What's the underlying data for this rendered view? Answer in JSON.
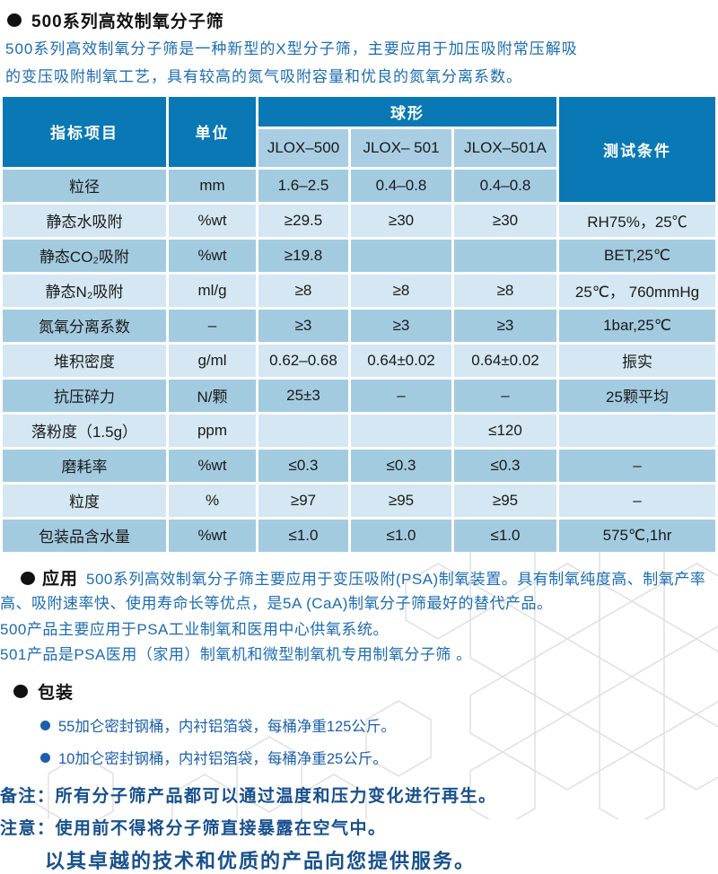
{
  "page": {
    "title": "500系列高效制氧分子筛",
    "intro_line1": "500系列高效制氧分子筛是一种新型的X型分子筛，主要应用于加压吸附常压解吸",
    "intro_line2": "的变压吸附制氧工艺，具有较高的氮气吸附容量和优良的氮氧分离系数。"
  },
  "colors": {
    "header_blue": "#0978B5",
    "row_medium": "#A3CBE0",
    "row_light": "#D4E7F2",
    "text_blue": "#1B6CB3",
    "navy": "#17508E"
  },
  "table": {
    "headers": {
      "indicator": "指标项目",
      "unit": "单位",
      "shape_group": "球形",
      "models": [
        "JLOX–500",
        "JLOX– 501",
        "JLOX–501A"
      ],
      "condition": "测试条件"
    },
    "rows": [
      {
        "label": "粒径",
        "unit": "mm",
        "values": [
          "1.6–2.5",
          "0.4–0.8",
          "0.4–0.8"
        ],
        "condition": null,
        "shade": "medium"
      },
      {
        "label": "静态水吸附",
        "unit": "%wt",
        "values": [
          "≥29.5",
          "≥30",
          "≥30"
        ],
        "condition": "RH75%，25℃",
        "shade": "light"
      },
      {
        "label": "静态CO₂吸附",
        "unit": "%wt",
        "values": [
          "≥19.8",
          "",
          ""
        ],
        "condition": "BET,25℃",
        "shade": "medium"
      },
      {
        "label": "静态N₂吸附",
        "unit": "ml/g",
        "values": [
          "≥8",
          "≥8",
          "≥8"
        ],
        "condition": "25℃， 760mmHg",
        "shade": "light"
      },
      {
        "label": "氮氧分离系数",
        "unit": "–",
        "values": [
          "≥3",
          "≥3",
          "≥3"
        ],
        "condition": "1bar,25℃",
        "shade": "medium"
      },
      {
        "label": "堆积密度",
        "unit": "g/ml",
        "values": [
          "0.62–0.68",
          "0.64±0.02",
          "0.64±0.02"
        ],
        "condition": "振实",
        "shade": "light"
      },
      {
        "label": "抗压碎力",
        "unit": "N/颗",
        "values": [
          "25±3",
          "–",
          "–"
        ],
        "condition": "25颗平均",
        "shade": "medium"
      },
      {
        "label": "落粉度（1.5g）",
        "unit": "ppm",
        "values": [
          "",
          "",
          "≤120"
        ],
        "condition": "",
        "shade": "light"
      },
      {
        "label": "磨耗率",
        "unit": "%wt",
        "values": [
          "≤0.3",
          "≤0.3",
          "≤0.3"
        ],
        "condition": "–",
        "shade": "medium"
      },
      {
        "label": "粒度",
        "unit": "%",
        "values": [
          "≥97",
          "≥95",
          "≥95"
        ],
        "condition": "–",
        "shade": "light"
      },
      {
        "label": "包装品含水量",
        "unit": "%wt",
        "values": [
          "≤1.0",
          "≤1.0",
          "≤1.0"
        ],
        "condition": "575℃,1hr",
        "shade": "medium"
      }
    ]
  },
  "application": {
    "heading": "应用",
    "paragraph": "500系列高效制氧分子筛主要应用于变压吸附(PSA)制氧装置。具有制氧纯度高、制氧产率高、吸附速率快、使用寿命长等优点，是5A (CaA)制氧分子筛最好的替代产品。",
    "line_500": "500产品主要应用于PSA工业制氧和医用中心供氧系统。",
    "line_501": "501产品是PSA医用（家用）制氧机和微型制氧机专用制氧分子筛 。"
  },
  "packaging": {
    "heading": "包装",
    "items": [
      "55加仑密封钢桶，内衬铝箔袋，每桶净重125公斤。",
      "10加仑密封钢桶，内衬铝箔袋，每桶净重25公斤。"
    ]
  },
  "notes": {
    "remark_label": "备注：",
    "remark": "所有分子筛产品都可以通过温度和压力变化进行再生。",
    "caution_label": "注意：",
    "caution": "使用前不得将分子筛直接暴露在空气中。",
    "slogan": "以其卓越的技术和优质的产品向您提供服务。"
  }
}
